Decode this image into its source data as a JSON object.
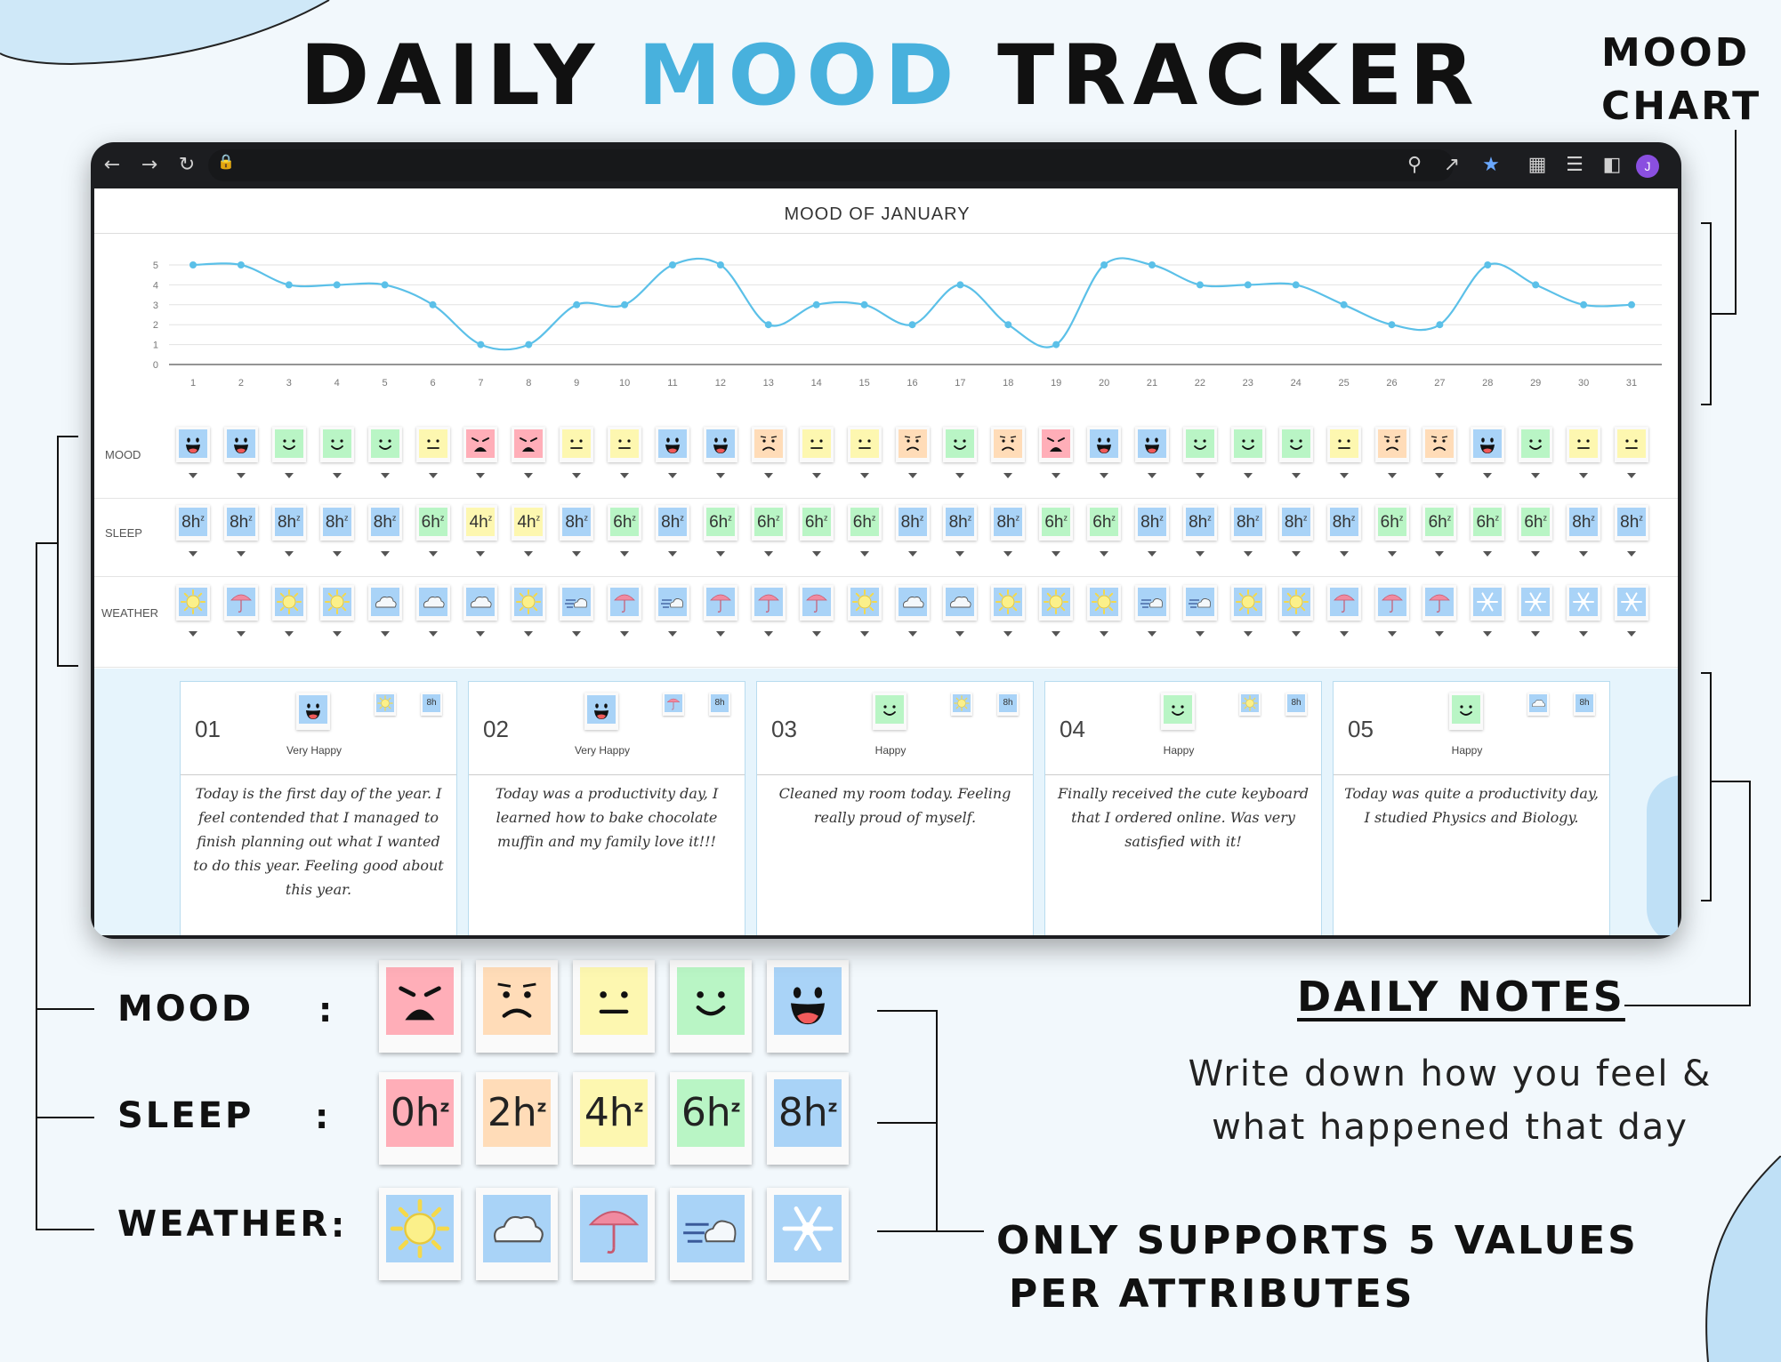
{
  "header": {
    "title_part1": "DAILY",
    "title_accent": "MOOD",
    "title_part2": "TRACKER"
  },
  "callouts": {
    "mood_chart_line1": "MOOD",
    "mood_chart_line2": "CHART",
    "daily_notes_title": "DAILY NOTES",
    "daily_notes_line1": "Write down how you feel &",
    "daily_notes_line2": "what happened that day",
    "only_supports_line1": "ONLY SUPPORTS 5 VALUES",
    "only_supports_line2": "PER ATTRIBUTES"
  },
  "browser": {
    "icons": [
      "back-arrow-icon",
      "forward-arrow-icon",
      "reload-icon",
      "lock-icon",
      "zoom-icon",
      "share-icon",
      "star-icon",
      "extensions-icon",
      "reading-list-icon",
      "side-panel-icon"
    ],
    "avatar_letter": "J",
    "accent_color": "#8a4fe0"
  },
  "tracker": {
    "chart_title": "MOOD OF JANUARY",
    "row_labels": {
      "mood": "MOOD",
      "sleep": "SLEEP",
      "weather": "WEATHER"
    },
    "days": [
      "1",
      "2",
      "3",
      "4",
      "5",
      "6",
      "7",
      "8",
      "9",
      "10",
      "11",
      "12",
      "13",
      "14",
      "15",
      "16",
      "17",
      "18",
      "19",
      "20",
      "21",
      "22",
      "23",
      "24",
      "25",
      "26",
      "27",
      "28",
      "29",
      "30",
      "31"
    ],
    "moods": [
      5,
      5,
      4,
      4,
      4,
      3,
      1,
      1,
      3,
      3,
      5,
      5,
      2,
      3,
      3,
      2,
      4,
      2,
      1,
      5,
      5,
      4,
      4,
      4,
      3,
      2,
      2,
      5,
      4,
      3,
      3
    ],
    "sleep": [
      "8h",
      "8h",
      "8h",
      "8h",
      "8h",
      "6h",
      "4h",
      "4h",
      "8h",
      "6h",
      "8h",
      "6h",
      "6h",
      "6h",
      "6h",
      "8h",
      "8h",
      "8h",
      "6h",
      "6h",
      "8h",
      "8h",
      "8h",
      "8h",
      "8h",
      "6h",
      "6h",
      "6h",
      "6h",
      "8h",
      "8h"
    ],
    "weather": [
      "sun",
      "rain",
      "sun",
      "sun",
      "cloud",
      "cloud",
      "cloud",
      "sun",
      "wind",
      "rain",
      "wind",
      "rain",
      "rain",
      "rain",
      "sun",
      "cloud",
      "cloud",
      "sun",
      "sun",
      "sun",
      "wind",
      "wind",
      "sun",
      "sun",
      "rain",
      "rain",
      "rain",
      "snow",
      "snow",
      "snow",
      "snow"
    ]
  },
  "chart_data": {
    "type": "line",
    "title": "MOOD OF JANUARY",
    "x": [
      1,
      2,
      3,
      4,
      5,
      6,
      7,
      8,
      9,
      10,
      11,
      12,
      13,
      14,
      15,
      16,
      17,
      18,
      19,
      20,
      21,
      22,
      23,
      24,
      25,
      26,
      27,
      28,
      29,
      30,
      31
    ],
    "values": [
      5,
      5,
      4,
      4,
      4,
      3,
      1,
      1,
      3,
      3,
      5,
      5,
      2,
      3,
      3,
      2,
      4,
      2,
      1,
      5,
      5,
      4,
      4,
      4,
      3,
      2,
      2,
      5,
      4,
      3,
      3
    ],
    "y_ticks": [
      "0",
      "1",
      "2",
      "3",
      "4",
      "5"
    ],
    "ylim": [
      0,
      5
    ],
    "grid": true,
    "line_color": "#5bc0e8"
  },
  "notes": [
    {
      "day": "01",
      "mood": 5,
      "mood_label": "Very Happy",
      "weather": "sun",
      "sleep": "8h",
      "text": "Today is the first day of the year. I feel contended that I managed to finish planning out what I wanted to do this year. Feeling good about this year."
    },
    {
      "day": "02",
      "mood": 5,
      "mood_label": "Very Happy",
      "weather": "rain",
      "sleep": "8h",
      "text": "Today was a productivity day, I learned how to bake chocolate muffin and my family love it!!!"
    },
    {
      "day": "03",
      "mood": 4,
      "mood_label": "Happy",
      "weather": "sun",
      "sleep": "8h",
      "text": "Cleaned my room today. Feeling really proud of myself."
    },
    {
      "day": "04",
      "mood": 4,
      "mood_label": "Happy",
      "weather": "sun",
      "sleep": "8h",
      "text": "Finally received the cute keyboard that I ordered online. Was very satisfied with it!"
    },
    {
      "day": "05",
      "mood": 4,
      "mood_label": "Happy",
      "weather": "cloud",
      "sleep": "8h",
      "text": "Today was quite a productivity day, I studied Physics and Biology."
    }
  ],
  "legend": {
    "mood_label": "MOOD",
    "sleep_label": "SLEEP",
    "weather_label": "WEATHER",
    "colon": ":",
    "mood_values": [
      1,
      2,
      3,
      4,
      5
    ],
    "sleep_values": [
      "0h",
      "2h",
      "4h",
      "6h",
      "8h"
    ],
    "weather_values": [
      "sun",
      "cloud",
      "rain",
      "wind",
      "snow"
    ]
  },
  "colors": {
    "mood": {
      "1": "#ffaeb8",
      "2": "#ffdcb8",
      "3": "#fdf7b0",
      "4": "#b9f5c5",
      "5": "#a9d3f7"
    },
    "sleep": {
      "0h": "#ffaeb8",
      "2h": "#ffdcb8",
      "4h": "#fdf7b0",
      "6h": "#b9f5c5",
      "8h": "#a9d3f7"
    },
    "weather_bg": "#a9d3f7",
    "accent": "#48b1dd"
  }
}
